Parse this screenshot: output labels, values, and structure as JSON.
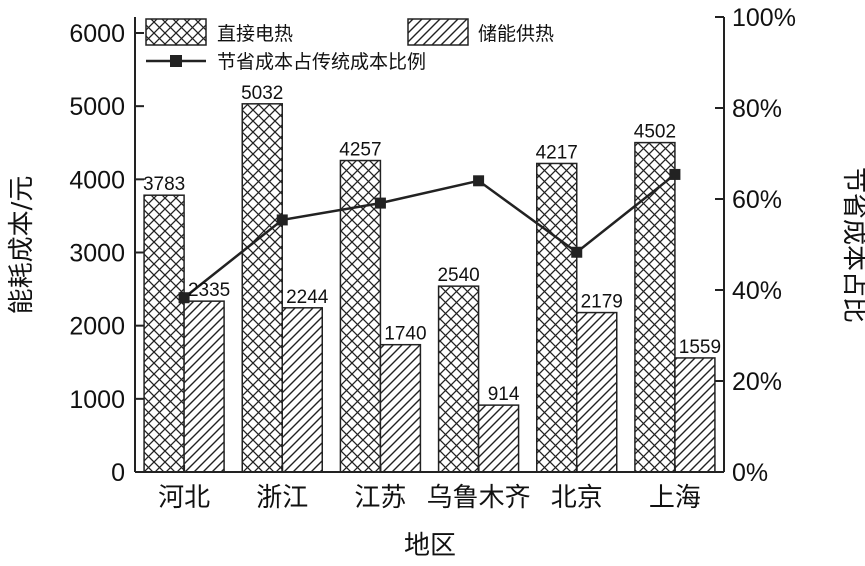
{
  "chart_data": {
    "type": "bar",
    "categories": [
      "河北",
      "浙江",
      "江苏",
      "乌鲁木齐",
      "北京",
      "上海"
    ],
    "series": [
      {
        "name": "直接电热",
        "type": "bar",
        "axis": "left",
        "pattern": "crosshatch",
        "values": [
          3783,
          5032,
          4257,
          2540,
          4217,
          4502
        ]
      },
      {
        "name": "储能供热",
        "type": "bar",
        "axis": "left",
        "pattern": "diagonal",
        "values": [
          2335,
          2244,
          1740,
          914,
          2179,
          1559
        ]
      },
      {
        "name": "节省成本占传统成本比例",
        "type": "line",
        "axis": "right",
        "marker": "square",
        "values": [
          38.3,
          55.4,
          59.1,
          64.0,
          48.3,
          65.4
        ]
      }
    ],
    "xlabel": "地区",
    "ylabel": "能耗成本/元",
    "y2label": "节省成本占比",
    "ylim": [
      0,
      6000
    ],
    "yticks": [
      0,
      1000,
      2000,
      3000,
      4000,
      5000,
      6000
    ],
    "y2lim": [
      0,
      100
    ],
    "y2ticks": [
      "0%",
      "20%",
      "40%",
      "60%",
      "80%",
      "100%"
    ],
    "grid": false,
    "legend": "top-left",
    "data_labels": true
  }
}
